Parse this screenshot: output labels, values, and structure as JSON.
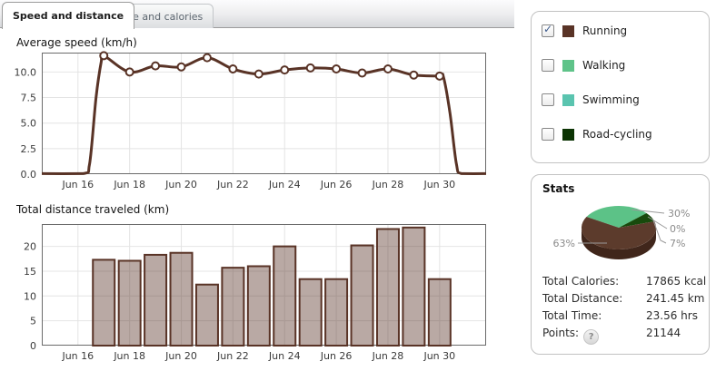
{
  "tabs": [
    {
      "label": "Speed and distance",
      "active": true
    },
    {
      "label": "Time and calories",
      "active": false
    }
  ],
  "legend": {
    "items": [
      {
        "label": "Running",
        "color": "#593326",
        "checked": true
      },
      {
        "label": "Walking",
        "color": "#5fc389",
        "checked": false
      },
      {
        "label": "Swimming",
        "color": "#5ac4af",
        "checked": false
      },
      {
        "label": "Road-cycling",
        "color": "#0c3404",
        "checked": false
      }
    ]
  },
  "stats": {
    "title": "Stats",
    "help_icon": "?",
    "rows": [
      {
        "label": "Total Calories:",
        "value": "17865 kcal"
      },
      {
        "label": "Total Distance:",
        "value": "241.45 km"
      },
      {
        "label": "Total Time:",
        "value": "23.56 hrs"
      },
      {
        "label": "Points:",
        "value": "21144"
      }
    ]
  },
  "chart_data": [
    {
      "type": "line",
      "title": "Average speed (km/h)",
      "x_tick_labels": [
        "Jun 16",
        "Jun 18",
        "Jun 20",
        "Jun 22",
        "Jun 24",
        "Jun 26",
        "Jun 28",
        "Jun 30"
      ],
      "x_tick_days": [
        0,
        2,
        4,
        6,
        8,
        10,
        12,
        14
      ],
      "y_ticks": [
        0,
        2.5,
        5,
        7.5,
        10
      ],
      "y_tick_labels": [
        "0.0",
        "2.5",
        "5.0",
        "7.5",
        "10.0"
      ],
      "ylim": [
        0,
        11.9
      ],
      "xlim_days": [
        -1.4,
        15.8
      ],
      "line_color": "#593326",
      "grid": true,
      "markers": [
        [
          1,
          11.6
        ],
        [
          2,
          10.0
        ],
        [
          3,
          10.6
        ],
        [
          4,
          10.5
        ],
        [
          5,
          11.4
        ],
        [
          6,
          10.3
        ],
        [
          7,
          9.8
        ],
        [
          8,
          10.2
        ],
        [
          9,
          10.4
        ],
        [
          10,
          10.3
        ],
        [
          11,
          9.9
        ],
        [
          12,
          10.3
        ],
        [
          13,
          9.7
        ],
        [
          14,
          9.6
        ]
      ],
      "curve": [
        [
          -1.4,
          0.05
        ],
        [
          0.2,
          0.05
        ],
        [
          0.45,
          1.0
        ],
        [
          0.7,
          7.5
        ],
        [
          0.9,
          11.0
        ],
        [
          1,
          11.6
        ],
        [
          2,
          10.0
        ],
        [
          3,
          10.6
        ],
        [
          4,
          10.5
        ],
        [
          5,
          11.4
        ],
        [
          6,
          10.3
        ],
        [
          7,
          9.8
        ],
        [
          8,
          10.2
        ],
        [
          9,
          10.4
        ],
        [
          10,
          10.3
        ],
        [
          11,
          9.9
        ],
        [
          12,
          10.3
        ],
        [
          13,
          9.7
        ],
        [
          14,
          9.6
        ],
        [
          14.15,
          9.5
        ],
        [
          14.4,
          6.0
        ],
        [
          14.65,
          1.0
        ],
        [
          14.85,
          0.05
        ],
        [
          15.8,
          0.05
        ]
      ]
    },
    {
      "type": "bar",
      "title": "Total distance traveled (km)",
      "x_tick_labels": [
        "Jun 16",
        "Jun 18",
        "Jun 20",
        "Jun 22",
        "Jun 24",
        "Jun 26",
        "Jun 28",
        "Jun 30"
      ],
      "x_tick_days": [
        0,
        2,
        4,
        6,
        8,
        10,
        12,
        14
      ],
      "y_ticks": [
        0,
        5,
        10,
        15,
        20
      ],
      "y_tick_labels": [
        "0",
        "5",
        "10",
        "15",
        "20"
      ],
      "ylim": [
        0,
        24.5
      ],
      "xlim_days": [
        -1.4,
        15.8
      ],
      "bar_fill": "rgba(89,51,38,0.42)",
      "bar_stroke": "#593326",
      "grid": true,
      "bars": [
        [
          1,
          17.3
        ],
        [
          2,
          17.1
        ],
        [
          3,
          18.3
        ],
        [
          4,
          18.7
        ],
        [
          5,
          12.3
        ],
        [
          6,
          15.7
        ],
        [
          7,
          16.0
        ],
        [
          8,
          20.0
        ],
        [
          9,
          13.4
        ],
        [
          10,
          13.4
        ],
        [
          11,
          20.2
        ],
        [
          12,
          23.5
        ],
        [
          13,
          23.8
        ],
        [
          14,
          13.4
        ]
      ]
    },
    {
      "type": "pie",
      "start_angle": -150,
      "side_color": "#40261b",
      "slices": [
        {
          "name": "Walking",
          "pct": 30,
          "label": "30%",
          "color": "#5cc287"
        },
        {
          "name": "Swimming",
          "pct": 0,
          "label": "0%",
          "color": "#5ac4af"
        },
        {
          "name": "Road-cycling",
          "pct": 7,
          "label": "7%",
          "color": "#174a0c"
        },
        {
          "name": "Running",
          "pct": 63,
          "label": "63%",
          "color": "#5c3b2c"
        }
      ]
    }
  ]
}
